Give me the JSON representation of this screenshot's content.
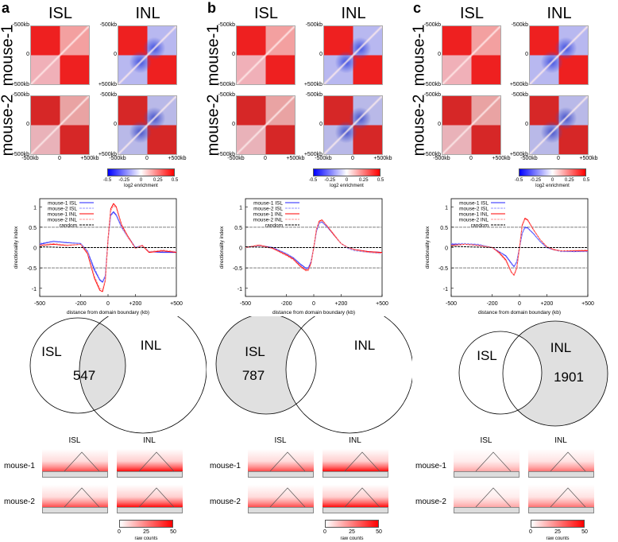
{
  "panels": [
    {
      "letter": "a",
      "heatmaps": {
        "columns": [
          "ISL",
          "INL"
        ],
        "rows": [
          "mouse-1",
          "mouse-2"
        ],
        "ticks": [
          "-500kb",
          "0",
          "+500kb"
        ],
        "colorbar": {
          "ticks": [
            "-0.5",
            "-0.25",
            "0",
            "0.25",
            "0.5"
          ],
          "label": "log2 enrichment",
          "low": "#0000ff",
          "mid": "#ffffff",
          "high": "#ff0000"
        }
      },
      "venn": {
        "sets": [
          "ISL",
          "INL"
        ],
        "highlight": "intersection",
        "count": "547"
      },
      "domains": {
        "columns": [
          "ISL",
          "INL"
        ],
        "rows": [
          "mouse-1",
          "mouse-2"
        ],
        "colorbar": {
          "ticks": [
            "0",
            "25",
            "50"
          ],
          "label": "raw counts"
        }
      }
    },
    {
      "letter": "b",
      "heatmaps": {
        "columns": [
          "ISL",
          "INL"
        ],
        "rows": [
          "mouse-1",
          "mouse-2"
        ],
        "ticks": [
          "-500kb",
          "0",
          "+500kb"
        ],
        "colorbar": {
          "ticks": [
            "-0.5",
            "-0.25",
            "0",
            "0.25",
            "0.5"
          ],
          "label": "log2 enrichment",
          "low": "#0000ff",
          "mid": "#ffffff",
          "high": "#ff0000"
        }
      },
      "venn": {
        "sets": [
          "ISL",
          "INL"
        ],
        "highlight": "ISL-only",
        "count": "787"
      },
      "domains": {
        "columns": [
          "ISL",
          "INL"
        ],
        "rows": [
          "mouse-1",
          "mouse-2"
        ],
        "colorbar": {
          "ticks": [
            "0",
            "25",
            "50"
          ],
          "label": "raw counts"
        }
      }
    },
    {
      "letter": "c",
      "heatmaps": {
        "columns": [
          "ISL",
          "INL"
        ],
        "rows": [
          "mouse-1",
          "mouse-2"
        ],
        "ticks": [
          "-500kb",
          "0",
          "+500kb"
        ],
        "colorbar": {
          "ticks": [
            "-0.5",
            "-0.25",
            "0",
            "0.25",
            "0.5"
          ],
          "label": "log2 enrichment",
          "low": "#0000ff",
          "mid": "#ffffff",
          "high": "#ff0000"
        }
      },
      "venn": {
        "sets": [
          "ISL",
          "INL"
        ],
        "highlight": "INL-only",
        "count": "1901"
      },
      "domains": {
        "columns": [
          "ISL",
          "INL"
        ],
        "rows": [
          "mouse-1",
          "mouse-2"
        ],
        "colorbar": {
          "ticks": [
            "0",
            "25",
            "50"
          ],
          "label": "raw counts"
        }
      }
    }
  ],
  "chart_data": [
    {
      "type": "line",
      "panel": "a",
      "xlabel": "distance from domain boundary (kb)",
      "ylabel": "directionality index",
      "xlim": [
        -500,
        500
      ],
      "ylim": [
        -1.2,
        1.2
      ],
      "xticks": [
        "-500",
        "-200",
        "0",
        "+200",
        "+500"
      ],
      "yticks": [
        "1",
        "0.5",
        "0",
        "-0.5",
        "-1"
      ],
      "hlines": [
        0.5,
        -0.5
      ],
      "legend": "top-left",
      "x": [
        -500,
        -400,
        -300,
        -200,
        -150,
        -100,
        -60,
        -40,
        -20,
        0,
        20,
        40,
        60,
        100,
        150,
        200,
        250,
        300,
        400,
        500
      ],
      "series": [
        {
          "name": "mouse-1 ISL",
          "color": "#2020ff",
          "dash": false,
          "values": [
            0.08,
            0.15,
            0.12,
            0.1,
            -0.1,
            -0.55,
            -0.8,
            -0.85,
            -0.7,
            0.2,
            0.8,
            0.88,
            0.8,
            0.5,
            0.25,
            0.0,
            0.05,
            -0.1,
            -0.12,
            -0.12
          ]
        },
        {
          "name": "mouse-2 ISL",
          "color": "#9090ff",
          "dash": true,
          "values": [
            0.1,
            0.16,
            0.13,
            0.1,
            -0.08,
            -0.5,
            -0.78,
            -0.83,
            -0.68,
            0.18,
            0.78,
            0.85,
            0.78,
            0.48,
            0.22,
            0.0,
            0.04,
            -0.1,
            -0.1,
            -0.1
          ]
        },
        {
          "name": "mouse-1 INL",
          "color": "#ff0000",
          "dash": false,
          "values": [
            0.05,
            0.08,
            0.05,
            0.08,
            -0.15,
            -0.75,
            -1.05,
            -1.08,
            -0.8,
            0.2,
            0.95,
            1.08,
            1.0,
            0.55,
            0.25,
            -0.02,
            0.05,
            -0.12,
            -0.08,
            -0.12
          ]
        },
        {
          "name": "mouse-2 INL",
          "color": "#ff9090",
          "dash": true,
          "values": [
            0.06,
            0.1,
            0.06,
            0.08,
            -0.12,
            -0.7,
            -1.0,
            -1.03,
            -0.78,
            0.18,
            0.9,
            1.03,
            0.97,
            0.52,
            0.23,
            -0.02,
            0.06,
            -0.1,
            -0.06,
            -0.1
          ]
        },
        {
          "name": "random",
          "color": "#000000",
          "dash": true,
          "values": [
            0.02,
            0.01,
            0.0,
            0.0,
            0.0,
            0.0,
            0.0,
            0.0,
            0.0,
            0.0,
            0.0,
            0.0,
            0.0,
            0.0,
            0.0,
            0.0,
            0.0,
            0.0,
            0.0,
            0.0
          ]
        }
      ]
    },
    {
      "type": "line",
      "panel": "b",
      "xlabel": "distance from domain boundary (kb)",
      "ylabel": "directionality index",
      "xlim": [
        -500,
        500
      ],
      "ylim": [
        -1.2,
        1.2
      ],
      "xticks": [
        "-500",
        "-200",
        "0",
        "+200",
        "+500"
      ],
      "yticks": [
        "1",
        "0.5",
        "0",
        "-0.5",
        "-1"
      ],
      "hlines": [
        0.5,
        -0.5
      ],
      "legend": "top-left",
      "x": [
        -500,
        -400,
        -300,
        -200,
        -150,
        -100,
        -60,
        -40,
        -20,
        0,
        20,
        40,
        60,
        100,
        150,
        200,
        250,
        300,
        400,
        500
      ],
      "series": [
        {
          "name": "mouse-1 ISL",
          "color": "#2020ff",
          "dash": false,
          "values": [
            0.0,
            0.05,
            0.0,
            -0.15,
            -0.25,
            -0.4,
            -0.5,
            -0.5,
            -0.35,
            0.0,
            0.4,
            0.6,
            0.63,
            0.5,
            0.3,
            0.1,
            0.0,
            -0.05,
            -0.1,
            -0.12
          ]
        },
        {
          "name": "mouse-2 ISL",
          "color": "#9090ff",
          "dash": true,
          "values": [
            0.0,
            0.04,
            0.0,
            -0.15,
            -0.26,
            -0.42,
            -0.52,
            -0.52,
            -0.36,
            0.0,
            0.4,
            0.6,
            0.62,
            0.5,
            0.3,
            0.1,
            -0.02,
            -0.08,
            -0.12,
            -0.15
          ]
        },
        {
          "name": "mouse-1 INL",
          "color": "#ff0000",
          "dash": false,
          "values": [
            0.0,
            0.06,
            -0.02,
            -0.18,
            -0.28,
            -0.45,
            -0.55,
            -0.55,
            -0.38,
            0.0,
            0.45,
            0.65,
            0.68,
            0.52,
            0.3,
            0.1,
            0.0,
            -0.05,
            -0.1,
            -0.12
          ]
        },
        {
          "name": "mouse-2 INL",
          "color": "#ff9090",
          "dash": true,
          "values": [
            0.0,
            0.05,
            -0.03,
            -0.2,
            -0.3,
            -0.47,
            -0.57,
            -0.57,
            -0.4,
            0.0,
            0.45,
            0.63,
            0.66,
            0.53,
            0.32,
            0.1,
            0.0,
            -0.06,
            -0.12,
            -0.14
          ]
        },
        {
          "name": "random",
          "color": "#000000",
          "dash": true,
          "values": [
            0.02,
            0.01,
            0.0,
            0.0,
            0.0,
            0.0,
            0.0,
            0.0,
            0.0,
            0.0,
            0.0,
            0.0,
            0.0,
            0.0,
            0.0,
            0.0,
            0.0,
            0.0,
            0.0,
            0.0
          ]
        }
      ]
    },
    {
      "type": "line",
      "panel": "c",
      "xlabel": "distance from domain boundary (kb)",
      "ylabel": "directionality index",
      "xlim": [
        -500,
        500
      ],
      "ylim": [
        -1.2,
        1.2
      ],
      "xticks": [
        "-500",
        "-200",
        "0",
        "+200",
        "+500"
      ],
      "yticks": [
        "1",
        "0.5",
        "0",
        "-0.5",
        "-1"
      ],
      "hlines": [
        0.5,
        -0.5
      ],
      "legend": "top-left",
      "x": [
        -500,
        -400,
        -300,
        -200,
        -150,
        -100,
        -60,
        -40,
        -20,
        0,
        20,
        40,
        60,
        100,
        150,
        200,
        250,
        300,
        400,
        500
      ],
      "series": [
        {
          "name": "mouse-1 ISL",
          "color": "#2020ff",
          "dash": false,
          "values": [
            0.08,
            0.08,
            0.06,
            0.0,
            -0.1,
            -0.2,
            -0.38,
            -0.47,
            -0.35,
            0.0,
            0.35,
            0.5,
            0.48,
            0.35,
            0.15,
            0.0,
            -0.05,
            -0.08,
            -0.1,
            -0.08
          ]
        },
        {
          "name": "mouse-2 ISL",
          "color": "#9090ff",
          "dash": true,
          "values": [
            0.1,
            0.1,
            0.08,
            0.0,
            -0.1,
            -0.22,
            -0.4,
            -0.48,
            -0.36,
            0.0,
            0.35,
            0.48,
            0.47,
            0.34,
            0.15,
            0.0,
            -0.05,
            -0.1,
            -0.1,
            -0.1
          ]
        },
        {
          "name": "mouse-1 INL",
          "color": "#ff0000",
          "dash": false,
          "values": [
            0.05,
            0.08,
            0.05,
            0.0,
            -0.12,
            -0.3,
            -0.6,
            -0.68,
            -0.5,
            0.0,
            0.55,
            0.72,
            0.68,
            0.45,
            0.2,
            0.02,
            -0.05,
            -0.08,
            -0.08,
            -0.08
          ]
        },
        {
          "name": "mouse-2 INL",
          "color": "#ff9090",
          "dash": true,
          "values": [
            0.06,
            0.08,
            0.05,
            0.0,
            -0.14,
            -0.33,
            -0.62,
            -0.66,
            -0.48,
            0.0,
            0.52,
            0.7,
            0.66,
            0.44,
            0.2,
            0.02,
            -0.04,
            -0.08,
            -0.07,
            -0.06
          ]
        },
        {
          "name": "random",
          "color": "#000000",
          "dash": true,
          "values": [
            0.03,
            0.02,
            0.01,
            0.0,
            0.0,
            0.0,
            0.0,
            0.0,
            0.0,
            0.0,
            0.0,
            0.0,
            0.0,
            0.0,
            0.0,
            0.0,
            0.0,
            0.0,
            0.0,
            0.0
          ]
        }
      ]
    }
  ]
}
